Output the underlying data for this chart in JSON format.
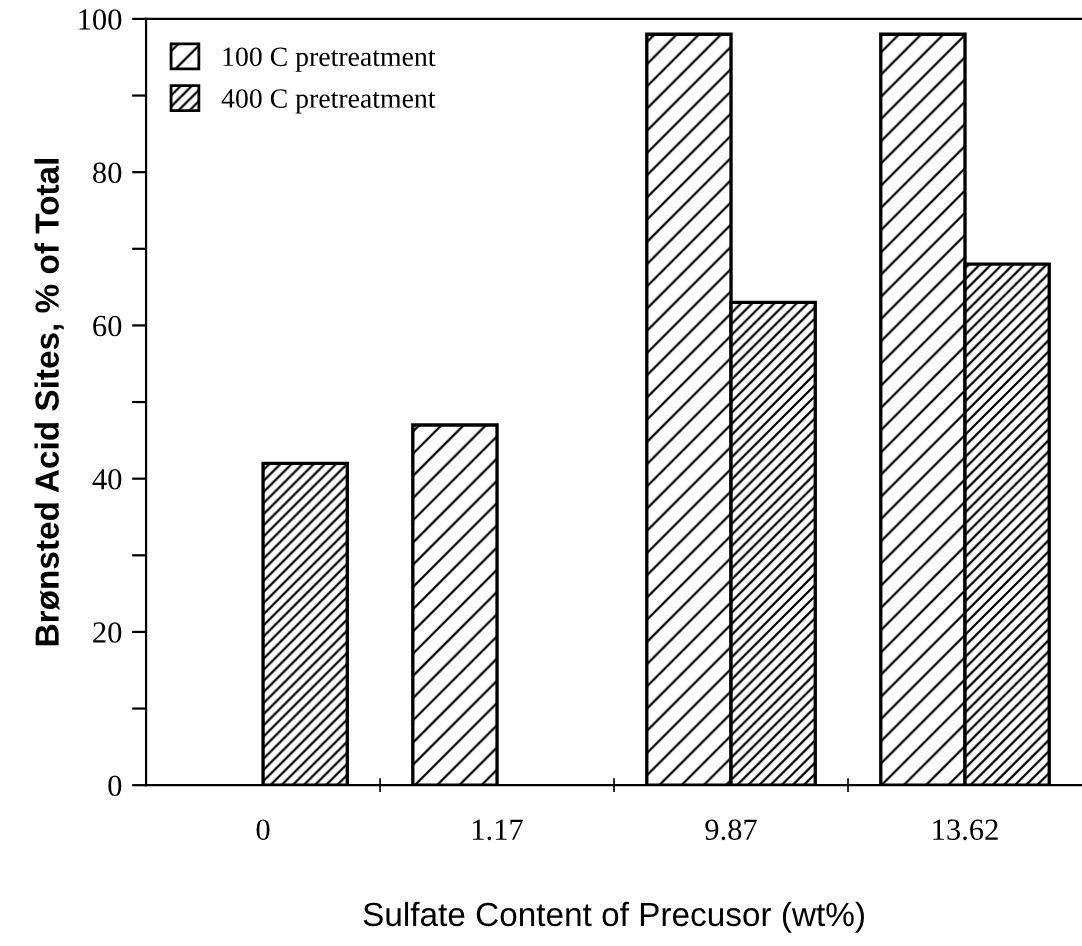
{
  "chart_data": {
    "type": "bar",
    "categories": [
      "0",
      "1.17",
      "9.87",
      "13.62"
    ],
    "series": [
      {
        "name": "100 C pretreatment",
        "color": "#000000",
        "values": [
          null,
          47,
          98,
          98
        ]
      },
      {
        "name": "400 C pretreatment",
        "color": "#000000",
        "values": [
          42,
          null,
          63,
          68
        ]
      }
    ],
    "xlabel": "Sulfate Content of Precusor (wt%)",
    "ylabel": "Brønsted Acid Sites, % of Total",
    "ylim": [
      0,
      100
    ],
    "yticks": [
      0,
      {
        "value": 10,
        "label": null
      },
      20,
      {
        "value": 30,
        "label": null
      },
      40,
      {
        "value": 50,
        "label": null
      },
      60,
      {
        "value": 70,
        "label": null
      },
      80,
      {
        "value": 90,
        "label": null
      },
      100
    ],
    "legend": "top left",
    "grid": false
  }
}
